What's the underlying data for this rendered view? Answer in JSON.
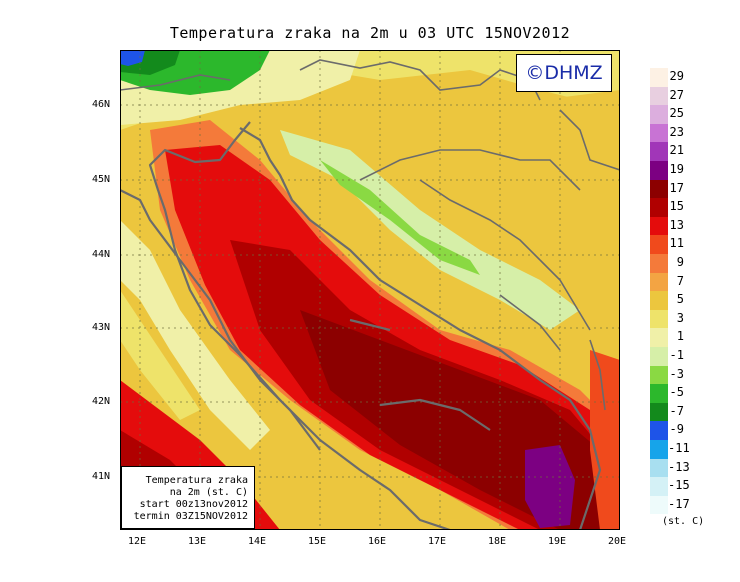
{
  "title": "Temperatura zraka na 2m u 03 UTC 15NOV2012",
  "credit": "©DHMZ",
  "infobox": {
    "line1": "Temperatura zraka",
    "line2": "na 2m (st. C)",
    "line3": "start 00z13nov2012",
    "line4": "termin 03Z15NOV2012"
  },
  "lat_labels": [
    "46N",
    "45N",
    "44N",
    "43N",
    "42N",
    "41N"
  ],
  "lon_labels": [
    "12E",
    "13E",
    "14E",
    "15E",
    "16E",
    "17E",
    "18E",
    "19E",
    "20E"
  ],
  "legend": {
    "unit": "(st. C)",
    "levels": [
      {
        "label": "29",
        "color": "#fdf1e4"
      },
      {
        "label": "27",
        "color": "#e8cfe0"
      },
      {
        "label": "25",
        "color": "#dcaede"
      },
      {
        "label": "23",
        "color": "#c873d4"
      },
      {
        "label": "21",
        "color": "#a136b8"
      },
      {
        "label": "19",
        "color": "#7c0082"
      },
      {
        "label": "17",
        "color": "#8c0000"
      },
      {
        "label": "15",
        "color": "#b00000"
      },
      {
        "label": "13",
        "color": "#e40c0c"
      },
      {
        "label": "11",
        "color": "#f04a1c"
      },
      {
        "label": "9",
        "color": "#f47a3a"
      },
      {
        "label": "7",
        "color": "#f3a443"
      },
      {
        "label": "5",
        "color": "#ecc63e"
      },
      {
        "label": "3",
        "color": "#eee36a"
      },
      {
        "label": "1",
        "color": "#f0f0a8"
      },
      {
        "label": "-1",
        "color": "#d6efa8"
      },
      {
        "label": "-3",
        "color": "#8ad943"
      },
      {
        "label": "-5",
        "color": "#2cb82c"
      },
      {
        "label": "-7",
        "color": "#138a1c"
      },
      {
        "label": "-9",
        "color": "#1e54e8"
      },
      {
        "label": "-11",
        "color": "#16a4ea"
      },
      {
        "label": "-13",
        "color": "#a8dff0"
      },
      {
        "label": "-15",
        "color": "#d4f1f6"
      },
      {
        "label": "-17",
        "color": "#eefbfb"
      }
    ]
  }
}
